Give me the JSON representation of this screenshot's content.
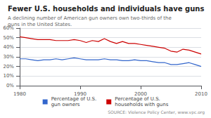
{
  "chart_data": {
    "type": "line",
    "title": "Fewer U.S. households and individuals have guns",
    "subtitle": "A declining number of American gun owners own two-thirds of the guns in the United States.",
    "annotations": [
      "SOURCE: Violence Policy Center, www.vpc.org"
    ],
    "x": [
      1980,
      1981,
      1982,
      1983,
      1984,
      1985,
      1986,
      1987,
      1988,
      1989,
      1990,
      1991,
      1992,
      1993,
      1994,
      1995,
      1996,
      1997,
      1998,
      1999,
      2000,
      2001,
      2002,
      2003,
      2004,
      2005,
      2006,
      2007,
      2008,
      2009,
      2010
    ],
    "series": [
      {
        "name": "Percentage of U.S.\nhouseholds with guns",
        "color": "#cc0000",
        "values": [
          51,
          50,
          49,
          48,
          48,
          48,
          47,
          47,
          47,
          48,
          47,
          45,
          47,
          46,
          49,
          46,
          44,
          46,
          44,
          44,
          43,
          42,
          41,
          40,
          39,
          36,
          35,
          38,
          37,
          35,
          33
        ]
      },
      {
        "name": "Percentage of U.S.\ngun owners",
        "color": "#3366cc",
        "values": [
          28,
          28,
          27,
          26,
          27,
          27,
          28,
          27,
          28,
          29,
          28,
          27,
          27,
          27,
          28,
          27,
          27,
          26,
          26,
          27,
          26,
          26,
          25,
          24,
          24,
          22,
          22,
          23,
          24,
          22,
          20
        ]
      }
    ],
    "xlim": [
      1980,
      2010
    ],
    "xticks": [
      1980,
      1990,
      2000,
      2010
    ],
    "ylim": [
      0,
      60
    ],
    "yticks": [
      {
        "value": 0,
        "label": "0%"
      },
      {
        "value": 10,
        "label": "10%"
      },
      {
        "value": 20,
        "label": "20%"
      },
      {
        "value": 30,
        "label": "30%"
      },
      {
        "value": 40,
        "label": "40%"
      },
      {
        "value": 50,
        "label": "50%"
      },
      {
        "value": 60,
        "label": "60%"
      }
    ],
    "grid": true,
    "legend": "bottom"
  }
}
